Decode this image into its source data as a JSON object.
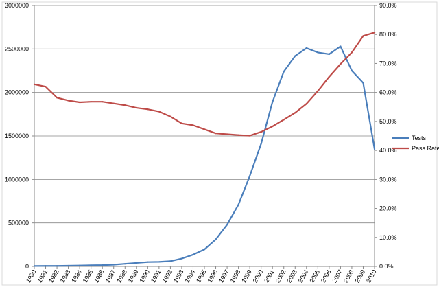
{
  "chart_data": {
    "type": "line",
    "title": "",
    "xlabel": "",
    "ylabel": "",
    "x": [
      "1980",
      "1981",
      "1982",
      "1983",
      "1984",
      "1985",
      "1986",
      "1987",
      "1988",
      "1989",
      "1990",
      "1991",
      "1992",
      "1993",
      "1994",
      "1995",
      "1996",
      "1997",
      "1998",
      "1999",
      "2000",
      "2001",
      "2002",
      "2003",
      "2004",
      "2005",
      "2006",
      "2007",
      "2008",
      "2009",
      "2010"
    ],
    "y_left": {
      "lim": [
        0,
        3000000
      ],
      "ticks": [
        0,
        500000,
        1000000,
        1500000,
        2000000,
        2500000,
        3000000
      ],
      "tick_labels": [
        "0",
        "500000",
        "1000000",
        "1500000",
        "2000000",
        "2500000",
        "3000000"
      ]
    },
    "y_right": {
      "lim": [
        0,
        90
      ],
      "ticks": [
        0,
        10,
        20,
        30,
        40,
        50,
        60,
        70,
        80,
        90
      ],
      "tick_labels": [
        "0.0%",
        "10.0%",
        "20.0%",
        "30.0%",
        "40.0%",
        "50.0%",
        "60.0%",
        "70.0%",
        "80.0%",
        "90.0%"
      ]
    },
    "grid": "horizontal",
    "legend_position": "right",
    "series": [
      {
        "name": "Tests",
        "axis": "left",
        "color": "#4a7ebb",
        "values": [
          5000,
          6000,
          6000,
          8000,
          10000,
          13000,
          15000,
          20000,
          30000,
          40000,
          50000,
          52000,
          60000,
          90000,
          135000,
          195000,
          310000,
          480000,
          710000,
          1040000,
          1410000,
          1890000,
          2240000,
          2420000,
          2510000,
          2460000,
          2440000,
          2530000,
          2250000,
          2110000,
          1350000
        ]
      },
      {
        "name": "Pass Rate",
        "axis": "right",
        "color": "#be4b48",
        "values": [
          62.8,
          62.0,
          58.2,
          57.2,
          56.6,
          56.8,
          56.8,
          56.2,
          55.6,
          54.7,
          54.2,
          53.4,
          51.7,
          49.3,
          48.7,
          47.3,
          45.9,
          45.6,
          45.3,
          45.1,
          46.4,
          48.3,
          50.6,
          53.0,
          56.1,
          60.5,
          65.4,
          69.8,
          73.8,
          79.5,
          80.7
        ]
      }
    ]
  }
}
